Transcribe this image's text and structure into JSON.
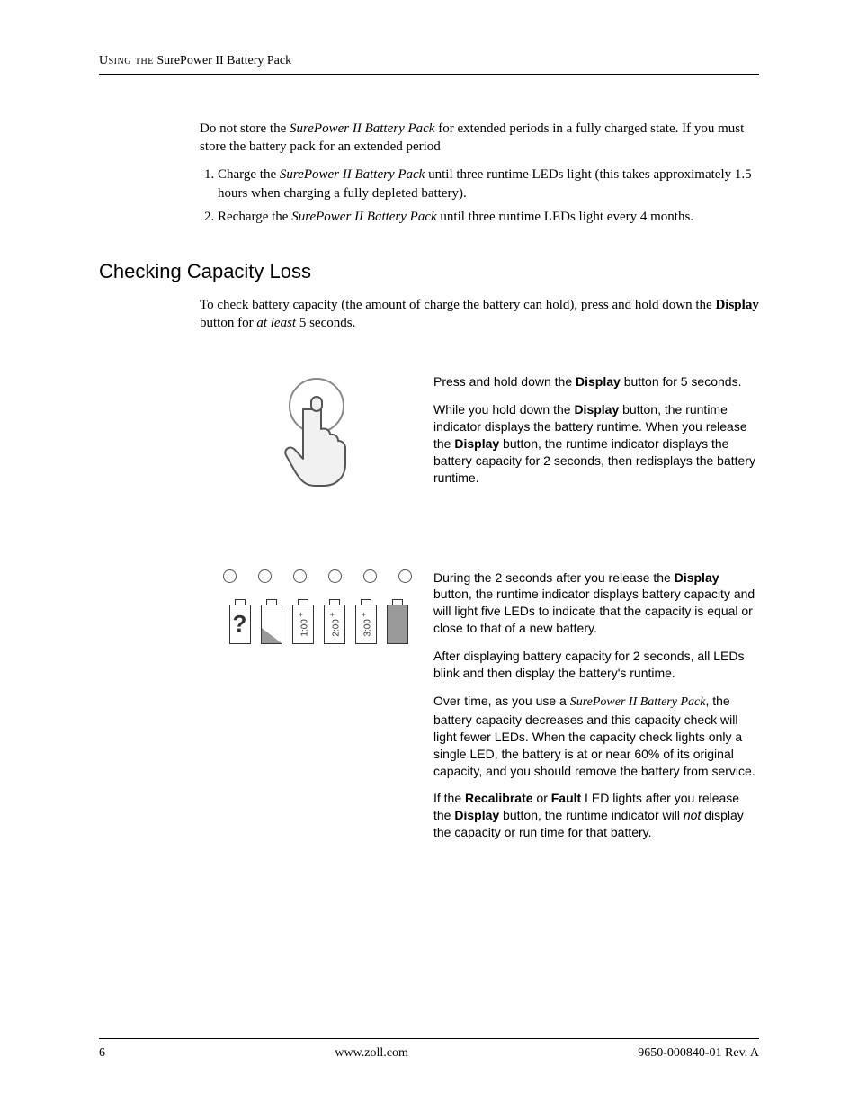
{
  "header": {
    "smallcaps": "Using the",
    "rest": " SurePower II Battery Pack"
  },
  "intro": {
    "p1_a": "Do not store the ",
    "p1_em": "SurePower II Battery Pack",
    "p1_b": " for extended periods in a fully charged state. If you must store the battery pack for an extended period",
    "li1_a": "Charge the ",
    "li1_em": "SurePower II Battery Pack",
    "li1_b": " until three runtime LEDs light (this takes approximately 1.5 hours when charging a fully depleted battery).",
    "li2_a": "Recharge the ",
    "li2_em": "SurePower II Battery Pack",
    "li2_b": " until three runtime LEDs light every 4 months."
  },
  "section": {
    "title": "Checking Capacity Loss",
    "p_a": "To check battery capacity (the amount of charge the battery can hold), press and hold down the ",
    "p_bold": "Display",
    "p_b": " button for ",
    "p_em": "at least",
    "p_c": " 5 seconds."
  },
  "fig1": {
    "p1_a": "Press and hold down the ",
    "p1_bold": "Display",
    "p1_b": " button for 5 seconds.",
    "p2_a": "While you hold down the ",
    "p2_bold1": "Display",
    "p2_b": " button, the runtime indicator displays the battery runtime. When you release the ",
    "p2_bold2": "Display",
    "p2_c": " button, the runtime indicator displays the battery capacity for 2 seconds, then redisplays the battery runtime."
  },
  "fig2": {
    "leds": 6,
    "batteries": [
      {
        "type": "question"
      },
      {
        "type": "diag"
      },
      {
        "type": "label",
        "label": "1:00"
      },
      {
        "type": "label",
        "label": "2:00"
      },
      {
        "type": "label",
        "label": "3:00"
      },
      {
        "type": "full"
      }
    ],
    "p1_a": "During the 2 seconds after you release the ",
    "p1_bold": "Display",
    "p1_b": " button, the runtime indicator displays battery capacity and will light five LEDs to indicate that the capacity is equal or close to that of a new battery.",
    "p2": "After displaying battery capacity for 2 seconds, all LEDs blink and then display the battery's runtime.",
    "p3_a": "Over time, as you use a ",
    "p3_em": "SurePower II Battery Pack",
    "p3_b": ", the battery capacity decreases and this capacity check will light fewer LEDs. When the capacity check lights only a single LED, the battery is at or near 60% of its original capacity, and you should remove the battery from service.",
    "p4_a": "If the ",
    "p4_bold1": "Recalibrate",
    "p4_b": " or ",
    "p4_bold2": "Fault",
    "p4_c": " LED lights after you release the ",
    "p4_bold3": "Display",
    "p4_d": " button, the runtime indicator will ",
    "p4_not": "not",
    "p4_e": " display the capacity or run time for that battery."
  },
  "footer": {
    "pageno": "6",
    "url": "www.zoll.com",
    "rev": "9650-000840-01 Rev. A"
  }
}
